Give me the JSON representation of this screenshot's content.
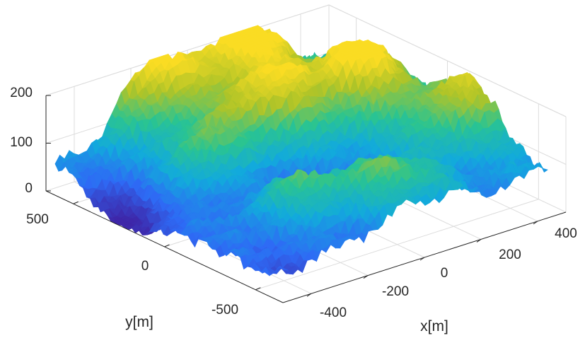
{
  "chart_data": {
    "type": "surface3d",
    "colormap": "parula",
    "title": "",
    "xlabel": "x[m]",
    "ylabel": "y[m]",
    "zlabel": "",
    "xlim": [
      -500,
      500
    ],
    "ylim": [
      -650,
      650
    ],
    "zlim": [
      0,
      200
    ],
    "x_ticks": [
      -400,
      -200,
      0,
      200,
      400
    ],
    "y_ticks": [
      -500,
      0,
      500
    ],
    "z_ticks": [
      0,
      100,
      200
    ],
    "x_tick_labels": [
      "-400",
      "-200",
      "0",
      "200",
      "400"
    ],
    "y_tick_labels": [
      "-500",
      "0",
      "500"
    ],
    "z_tick_labels": [
      "0",
      "100",
      "200"
    ],
    "grid": true,
    "peaks": [
      {
        "x": 150,
        "y": 550,
        "height": 215
      },
      {
        "x": 320,
        "y": 200,
        "height": 210
      },
      {
        "x": -150,
        "y": 600,
        "height": 205
      },
      {
        "x": 30,
        "y": 250,
        "height": 190
      },
      {
        "x": 450,
        "y": -150,
        "height": 165
      },
      {
        "x": -250,
        "y": 200,
        "height": 160
      },
      {
        "x": -180,
        "y": -250,
        "height": 150
      },
      {
        "x": 50,
        "y": -400,
        "height": 145
      }
    ],
    "valleys": [
      {
        "x": -450,
        "y": 250,
        "depth": 0
      },
      {
        "x": -100,
        "y": -50,
        "depth": 25
      }
    ]
  }
}
